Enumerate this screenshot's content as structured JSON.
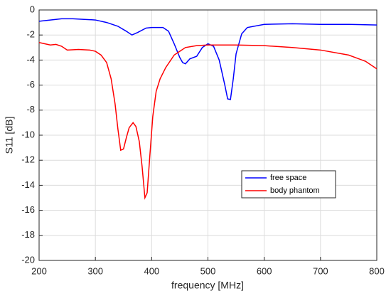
{
  "chart_data": {
    "type": "line",
    "xlabel": "frequency [MHz]",
    "ylabel": "S11 [dB]",
    "xlim": [
      200,
      800
    ],
    "xticks": [
      200,
      300,
      400,
      500,
      600,
      700,
      800
    ],
    "ylim": [
      -20,
      0
    ],
    "yticks": [
      -20,
      -18,
      -16,
      -14,
      -12,
      -10,
      -8,
      -6,
      -4,
      -2,
      0
    ],
    "grid": true,
    "series": [
      {
        "name": "free space",
        "color": "#0000ff",
        "x": [
          200,
          220,
          240,
          260,
          280,
          300,
          320,
          340,
          355,
          365,
          375,
          390,
          400,
          420,
          430,
          440,
          450,
          455,
          460,
          468,
          480,
          490,
          500,
          510,
          520,
          530,
          535,
          540,
          545,
          550,
          560,
          570,
          600,
          650,
          700,
          750,
          800
        ],
        "values": [
          -0.9,
          -0.8,
          -0.7,
          -0.7,
          -0.75,
          -0.8,
          -1.0,
          -1.3,
          -1.7,
          -2.0,
          -1.8,
          -1.45,
          -1.4,
          -1.4,
          -1.7,
          -2.7,
          -3.8,
          -4.2,
          -4.3,
          -3.9,
          -3.7,
          -3.0,
          -2.7,
          -2.9,
          -4.0,
          -6.0,
          -7.1,
          -7.15,
          -5.5,
          -3.5,
          -1.9,
          -1.4,
          -1.15,
          -1.1,
          -1.15,
          -1.15,
          -1.2
        ]
      },
      {
        "name": "body phantom",
        "color": "#ff0000",
        "x": [
          200,
          210,
          220,
          230,
          240,
          250,
          270,
          290,
          300,
          310,
          320,
          328,
          335,
          340,
          345,
          350,
          355,
          360,
          367,
          372,
          378,
          383,
          388,
          392,
          397,
          402,
          408,
          415,
          425,
          440,
          460,
          480,
          500,
          550,
          600,
          650,
          700,
          750,
          780,
          800
        ],
        "values": [
          -2.6,
          -2.7,
          -2.8,
          -2.75,
          -2.9,
          -3.2,
          -3.15,
          -3.2,
          -3.3,
          -3.6,
          -4.2,
          -5.5,
          -7.5,
          -9.5,
          -11.2,
          -11.1,
          -10.2,
          -9.4,
          -9.0,
          -9.3,
          -10.5,
          -12.5,
          -15.0,
          -14.6,
          -11.5,
          -8.5,
          -6.5,
          -5.5,
          -4.6,
          -3.6,
          -3.0,
          -2.85,
          -2.8,
          -2.8,
          -2.85,
          -3.0,
          -3.2,
          -3.6,
          -4.1,
          -4.7
        ]
      }
    ]
  }
}
